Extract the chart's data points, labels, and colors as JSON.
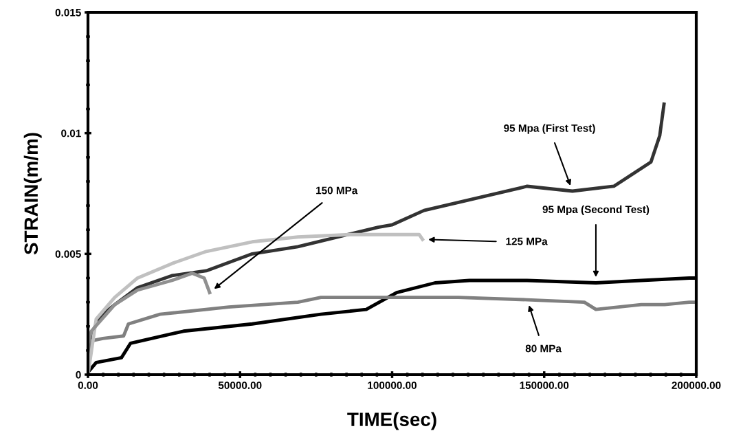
{
  "chart_data": {
    "type": "line",
    "xlabel": "TIME(sec)",
    "ylabel": "STRAIN(m/m)",
    "xlim": [
      0,
      200000
    ],
    "ylim": [
      0,
      0.015
    ],
    "xticks": [
      {
        "value": 0,
        "label": "0.00"
      },
      {
        "value": 5000,
        "label": null
      },
      {
        "value": 10000,
        "label": null
      },
      {
        "value": 15000,
        "label": null
      },
      {
        "value": 20000,
        "label": null
      },
      {
        "value": 25000,
        "label": null
      },
      {
        "value": 30000,
        "label": null
      },
      {
        "value": 35000,
        "label": null
      },
      {
        "value": 40000,
        "label": null
      },
      {
        "value": 45000,
        "label": null
      },
      {
        "value": 50000,
        "label": "50000.00"
      },
      {
        "value": 55000,
        "label": null
      },
      {
        "value": 60000,
        "label": null
      },
      {
        "value": 65000,
        "label": null
      },
      {
        "value": 70000,
        "label": null
      },
      {
        "value": 75000,
        "label": null
      },
      {
        "value": 80000,
        "label": null
      },
      {
        "value": 85000,
        "label": null
      },
      {
        "value": 90000,
        "label": null
      },
      {
        "value": 95000,
        "label": null
      },
      {
        "value": 100000,
        "label": "100000.00"
      },
      {
        "value": 105000,
        "label": null
      },
      {
        "value": 110000,
        "label": null
      },
      {
        "value": 115000,
        "label": null
      },
      {
        "value": 120000,
        "label": null
      },
      {
        "value": 125000,
        "label": null
      },
      {
        "value": 130000,
        "label": null
      },
      {
        "value": 135000,
        "label": null
      },
      {
        "value": 140000,
        "label": null
      },
      {
        "value": 145000,
        "label": null
      },
      {
        "value": 150000,
        "label": "150000.00"
      },
      {
        "value": 155000,
        "label": null
      },
      {
        "value": 160000,
        "label": null
      },
      {
        "value": 165000,
        "label": null
      },
      {
        "value": 170000,
        "label": null
      },
      {
        "value": 175000,
        "label": null
      },
      {
        "value": 180000,
        "label": null
      },
      {
        "value": 185000,
        "label": null
      },
      {
        "value": 190000,
        "label": null
      },
      {
        "value": 195000,
        "label": null
      },
      {
        "value": 200000,
        "label": "200000.00"
      }
    ],
    "yticks": [
      0,
      {
        "value": 0.001,
        "label": null
      },
      {
        "value": 0.002,
        "label": null
      },
      {
        "value": 0.003,
        "label": null
      },
      {
        "value": 0.004,
        "label": null
      },
      0.005,
      {
        "value": 0.006,
        "label": null
      },
      {
        "value": 0.007,
        "label": null
      },
      {
        "value": 0.008,
        "label": null
      },
      {
        "value": 0.009,
        "label": null
      },
      0.01,
      {
        "value": 0.011,
        "label": null
      },
      {
        "value": 0.012,
        "label": null
      },
      {
        "value": 0.013,
        "label": null
      },
      {
        "value": 0.014,
        "label": null
      },
      0.015
    ],
    "grid": false,
    "legend": false,
    "marker": "none",
    "line_style": "solid",
    "series": [
      {
        "color": "#333333",
        "x": [
          0,
          1600,
          2700,
          5000,
          8800,
          16300,
          27600,
          38900,
          54000,
          69000,
          95400,
          99900,
          110500,
          144400,
          159300,
          172900,
          185100,
          188000,
          189400
        ],
        "values": [
          0,
          0.0018,
          0.0021,
          0.0025,
          0.0029,
          0.0036,
          0.0041,
          0.0043,
          0.005,
          0.0053,
          0.0061,
          0.0062,
          0.0068,
          0.0078,
          0.0076,
          0.0078,
          0.0088,
          0.0099,
          0.0112
        ]
      },
      {
        "color": "#000000",
        "x": [
          0,
          2700,
          11000,
          14000,
          31400,
          54000,
          76600,
          91500,
          101500,
          114100,
          125400,
          144400,
          167000,
          181900,
          197700,
          200000
        ],
        "values": [
          0.0001,
          0.0005,
          0.0007,
          0.0013,
          0.0018,
          0.0021,
          0.0025,
          0.0027,
          0.0034,
          0.0038,
          0.0039,
          0.0039,
          0.0038,
          0.0039,
          0.004,
          0.004
        ]
      },
      {
        "color": "#808080",
        "x": [
          0,
          1100,
          4900,
          11700,
          13300,
          23700,
          46300,
          69000,
          76600,
          99200,
          121800,
          144400,
          163200,
          167000,
          181900,
          189600,
          197700,
          200000
        ],
        "values": [
          0.0003,
          0.0014,
          0.0015,
          0.0016,
          0.0021,
          0.0025,
          0.0028,
          0.003,
          0.0032,
          0.0032,
          0.0032,
          0.0031,
          0.003,
          0.0027,
          0.0029,
          0.0029,
          0.003,
          0.003
        ]
      },
      {
        "color": "#c0c0c0",
        "x": [
          0,
          2700,
          8800,
          16300,
          27600,
          38900,
          54000,
          69000,
          86000,
          91500,
          108900,
          110000
        ],
        "values": [
          0,
          0.0023,
          0.0032,
          0.004,
          0.0046,
          0.0051,
          0.0055,
          0.0057,
          0.0058,
          0.0058,
          0.0058,
          0.0056
        ]
      },
      {
        "color": "#909090",
        "x": [
          0,
          1100,
          8800,
          16300,
          27600,
          34300,
          38200,
          40000
        ],
        "values": [
          0.0013,
          0.0018,
          0.0029,
          0.0035,
          0.0039,
          0.0042,
          0.004,
          0.0034
        ]
      }
    ],
    "annotations": [
      "95 Mpa (First Test)",
      "95 Mpa (Second Test)",
      "80 MPa",
      "125 MPa",
      "150 MPa"
    ]
  }
}
